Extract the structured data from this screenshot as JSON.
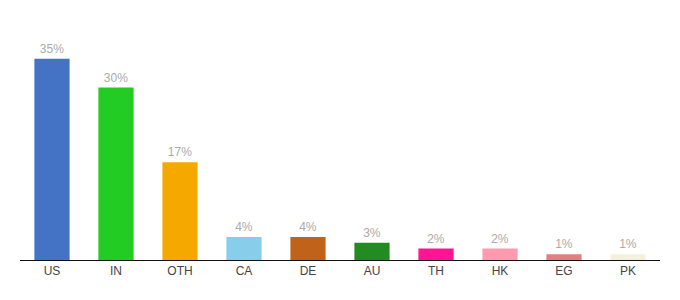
{
  "chart_data": {
    "type": "bar",
    "categories": [
      "US",
      "IN",
      "OTH",
      "CA",
      "DE",
      "AU",
      "TH",
      "HK",
      "EG",
      "PK"
    ],
    "values": [
      35,
      30,
      17,
      4,
      4,
      3,
      2,
      2,
      1,
      1
    ],
    "value_labels": [
      "35%",
      "30%",
      "17%",
      "4%",
      "4%",
      "3%",
      "2%",
      "2%",
      "1%",
      "1%"
    ],
    "data_labels": true,
    "colors": [
      "#4472C4",
      "#22CC22",
      "#F5A800",
      "#87CEEB",
      "#C0621A",
      "#228B22",
      "#FF1493",
      "#FF9AAF",
      "#E08080",
      "#F5F0DC"
    ],
    "ylim": [
      0,
      40
    ],
    "grid": false,
    "tick_labels": "x"
  }
}
